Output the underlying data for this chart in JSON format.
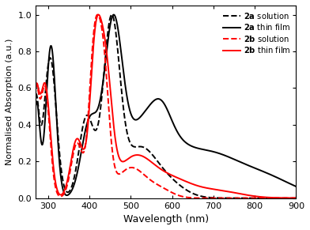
{
  "title": "",
  "xlabel": "Wavelength (nm)",
  "ylabel": "Normalised Absorption (a.u.)",
  "xlim": [
    270,
    900
  ],
  "ylim": [
    0,
    1.05
  ],
  "xticks": [
    300,
    400,
    500,
    600,
    700,
    800,
    900
  ],
  "yticks": [
    0.0,
    0.2,
    0.4,
    0.6,
    0.8,
    1.0
  ],
  "background_color": "#ffffff",
  "linewidth": 1.4
}
